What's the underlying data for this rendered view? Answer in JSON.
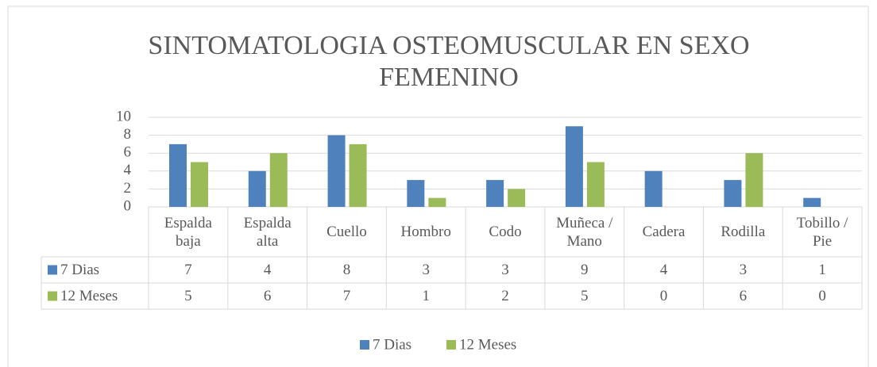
{
  "chart_data": {
    "type": "bar",
    "title": [
      "SINTOMATOLOGIA OSTEOMUSCULAR EN SEXO",
      "FEMENINO"
    ],
    "categories": [
      "Espalda baja",
      "Espalda alta",
      "Cuello",
      "Hombro",
      "Codo",
      "Muñeca / Mano",
      "Cadera",
      "Rodilla",
      "Tobillo / Pie"
    ],
    "series": [
      {
        "name": "7 Dias",
        "color": "#4f81bd",
        "values": [
          7,
          4,
          8,
          3,
          3,
          9,
          4,
          3,
          1
        ]
      },
      {
        "name": "12 Meses",
        "color": "#9bbb59",
        "values": [
          5,
          6,
          7,
          1,
          2,
          5,
          0,
          6,
          0
        ]
      }
    ],
    "ylim": [
      0,
      10
    ],
    "yticks": [
      0,
      2,
      4,
      6,
      8,
      10
    ],
    "grid": true,
    "legend": "bottom",
    "data_table": true
  }
}
